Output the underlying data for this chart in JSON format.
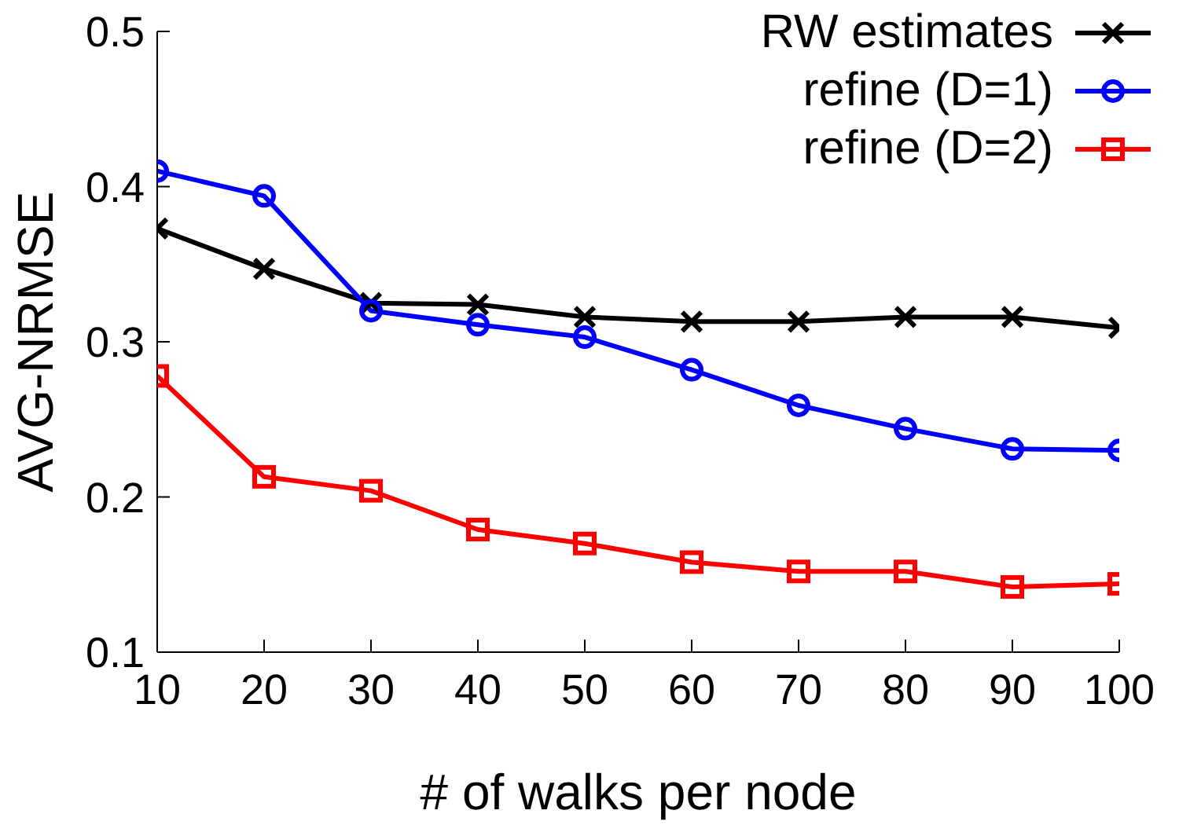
{
  "chart_data": {
    "type": "line",
    "xlabel": "# of walks per node",
    "ylabel": "AVG-NRMSE",
    "x": [
      10,
      20,
      30,
      40,
      50,
      60,
      70,
      80,
      90,
      100
    ],
    "xlim": [
      10,
      100
    ],
    "xticks": [
      10,
      20,
      30,
      40,
      50,
      60,
      70,
      80,
      90,
      100
    ],
    "ylim": [
      0.1,
      0.5
    ],
    "yticks": [
      0.1,
      0.2,
      0.3,
      0.4,
      0.5
    ],
    "grid": false,
    "legend": "top right",
    "series": [
      {
        "name": "RW estimates",
        "color": "#000000",
        "marker": "cross",
        "values": [
          0.373,
          0.347,
          0.325,
          0.324,
          0.316,
          0.313,
          0.313,
          0.316,
          0.316,
          0.309
        ]
      },
      {
        "name": "refine (D=1)",
        "color": "#0000ff",
        "marker": "circle",
        "values": [
          0.41,
          0.394,
          0.32,
          0.311,
          0.303,
          0.282,
          0.259,
          0.244,
          0.231,
          0.23
        ]
      },
      {
        "name": "refine (D=2)",
        "color": "#ff0000",
        "marker": "square",
        "values": [
          0.278,
          0.213,
          0.204,
          0.179,
          0.17,
          0.158,
          0.152,
          0.152,
          0.142,
          0.144
        ]
      }
    ]
  }
}
